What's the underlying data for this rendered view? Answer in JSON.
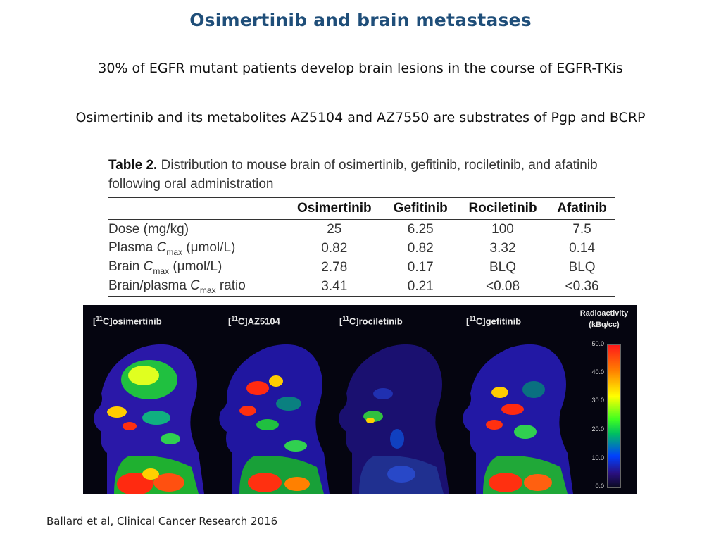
{
  "slide": {
    "title": "Osimertinib and brain metastases",
    "bullets": [
      "30% of EGFR mutant patients develop brain lesions in the course of EGFR-TKis",
      "Osimertinib and its metabolites AZ5104 and AZ7550 are substrates of Pgp and BCRP"
    ],
    "citation": "Ballard et al, Clinical Cancer Research 2016"
  },
  "table": {
    "caption_number": "Table 2.",
    "caption_text": "Distribution to mouse brain of osimertinib, gefitinib, rociletinib, and afatinib following oral administration",
    "columns": [
      "Osimertinib",
      "Gefitinib",
      "Rociletinib",
      "Afatinib"
    ],
    "rows": [
      {
        "label": "Dose (mg/kg)",
        "values": [
          "25",
          "6.25",
          "100",
          "7.5"
        ]
      },
      {
        "label_pre": "Plasma ",
        "label_c": "C",
        "label_sub": "max",
        "label_post": " (μmol/L)",
        "values": [
          "0.82",
          "0.82",
          "3.32",
          "0.14"
        ]
      },
      {
        "label_pre": "Brain ",
        "label_c": "C",
        "label_sub": "max",
        "label_post": " (μmol/L)",
        "values": [
          "2.78",
          "0.17",
          "BLQ",
          "BLQ"
        ]
      },
      {
        "label_pre": "Brain/plasma ",
        "label_c": "C",
        "label_sub": "max",
        "label_post": " ratio",
        "values": [
          "3.41",
          "0.21",
          "<0.08",
          "<0.36"
        ]
      }
    ]
  },
  "pet_image": {
    "labels": [
      {
        "iso": "11",
        "name": "osimertinib"
      },
      {
        "iso": "11",
        "name": "AZ5104"
      },
      {
        "iso": "11",
        "name": "rociletinib"
      },
      {
        "iso": "11",
        "name": "gefitinib"
      }
    ],
    "legend_title_line1": "Radioactivity",
    "legend_title_line2": "(kBq/cc)",
    "legend_ticks": [
      "50.0",
      "40.0",
      "30.0",
      "20.0",
      "10.0",
      "0.0"
    ]
  }
}
